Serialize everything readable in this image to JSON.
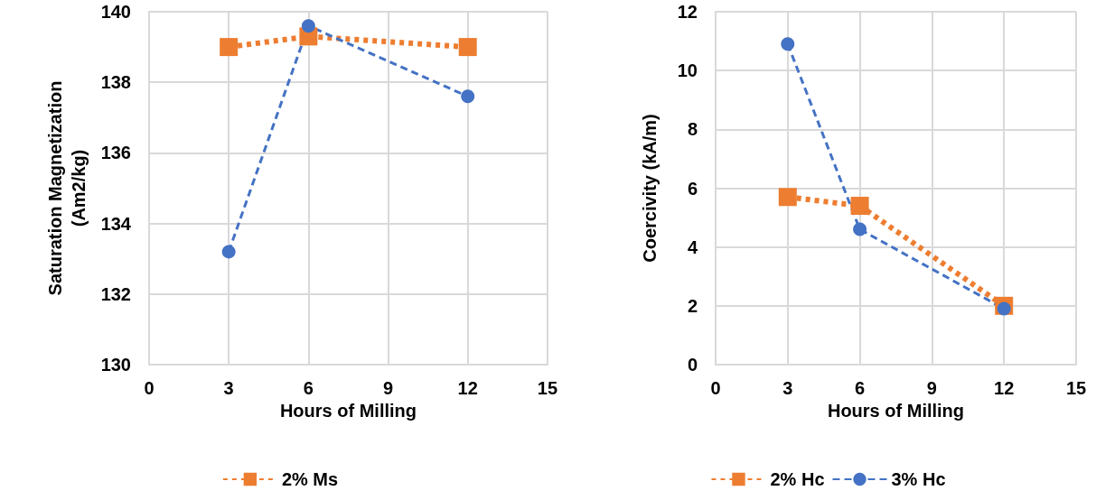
{
  "chart_data": [
    {
      "type": "line",
      "xlabel": "Hours of Milling",
      "ylabel": "Saturation Magnetization\n(Am2/kg)",
      "x": [
        3,
        6,
        12
      ],
      "series": [
        {
          "name": "2% Ms",
          "color": "#ed7d31",
          "values": [
            139.0,
            139.3,
            139.0
          ],
          "marker": "square",
          "line_style": "dotted"
        },
        {
          "color": "#4472c4",
          "values": [
            133.2,
            139.6,
            137.6
          ],
          "marker": "circle",
          "line_style": "dashed"
        }
      ],
      "xlim": [
        0,
        15
      ],
      "xticks": [
        0,
        3,
        6,
        9,
        12,
        15
      ],
      "ylim": [
        130,
        140
      ],
      "yticks": [
        130,
        132,
        134,
        136,
        138,
        140
      ],
      "grid": true,
      "legend": "bottom"
    },
    {
      "type": "line",
      "xlabel": "Hours of Milling",
      "ylabel": "Coercivity (kA/m)",
      "x": [
        3,
        6,
        12
      ],
      "series": [
        {
          "name": "2% Hc",
          "color": "#ed7d31",
          "values": [
            5.7,
            5.4,
            2.0
          ],
          "marker": "square",
          "line_style": "dotted"
        },
        {
          "name": "3% Hc",
          "color": "#4472c4",
          "values": [
            10.9,
            4.6,
            1.9
          ],
          "marker": "circle",
          "line_style": "dashed"
        }
      ],
      "xlim": [
        0,
        15
      ],
      "xticks": [
        0,
        3,
        6,
        9,
        12,
        15
      ],
      "ylim": [
        0,
        12
      ],
      "yticks": [
        0,
        2,
        4,
        6,
        8,
        10,
        12
      ],
      "grid": true,
      "legend": "bottom"
    }
  ]
}
